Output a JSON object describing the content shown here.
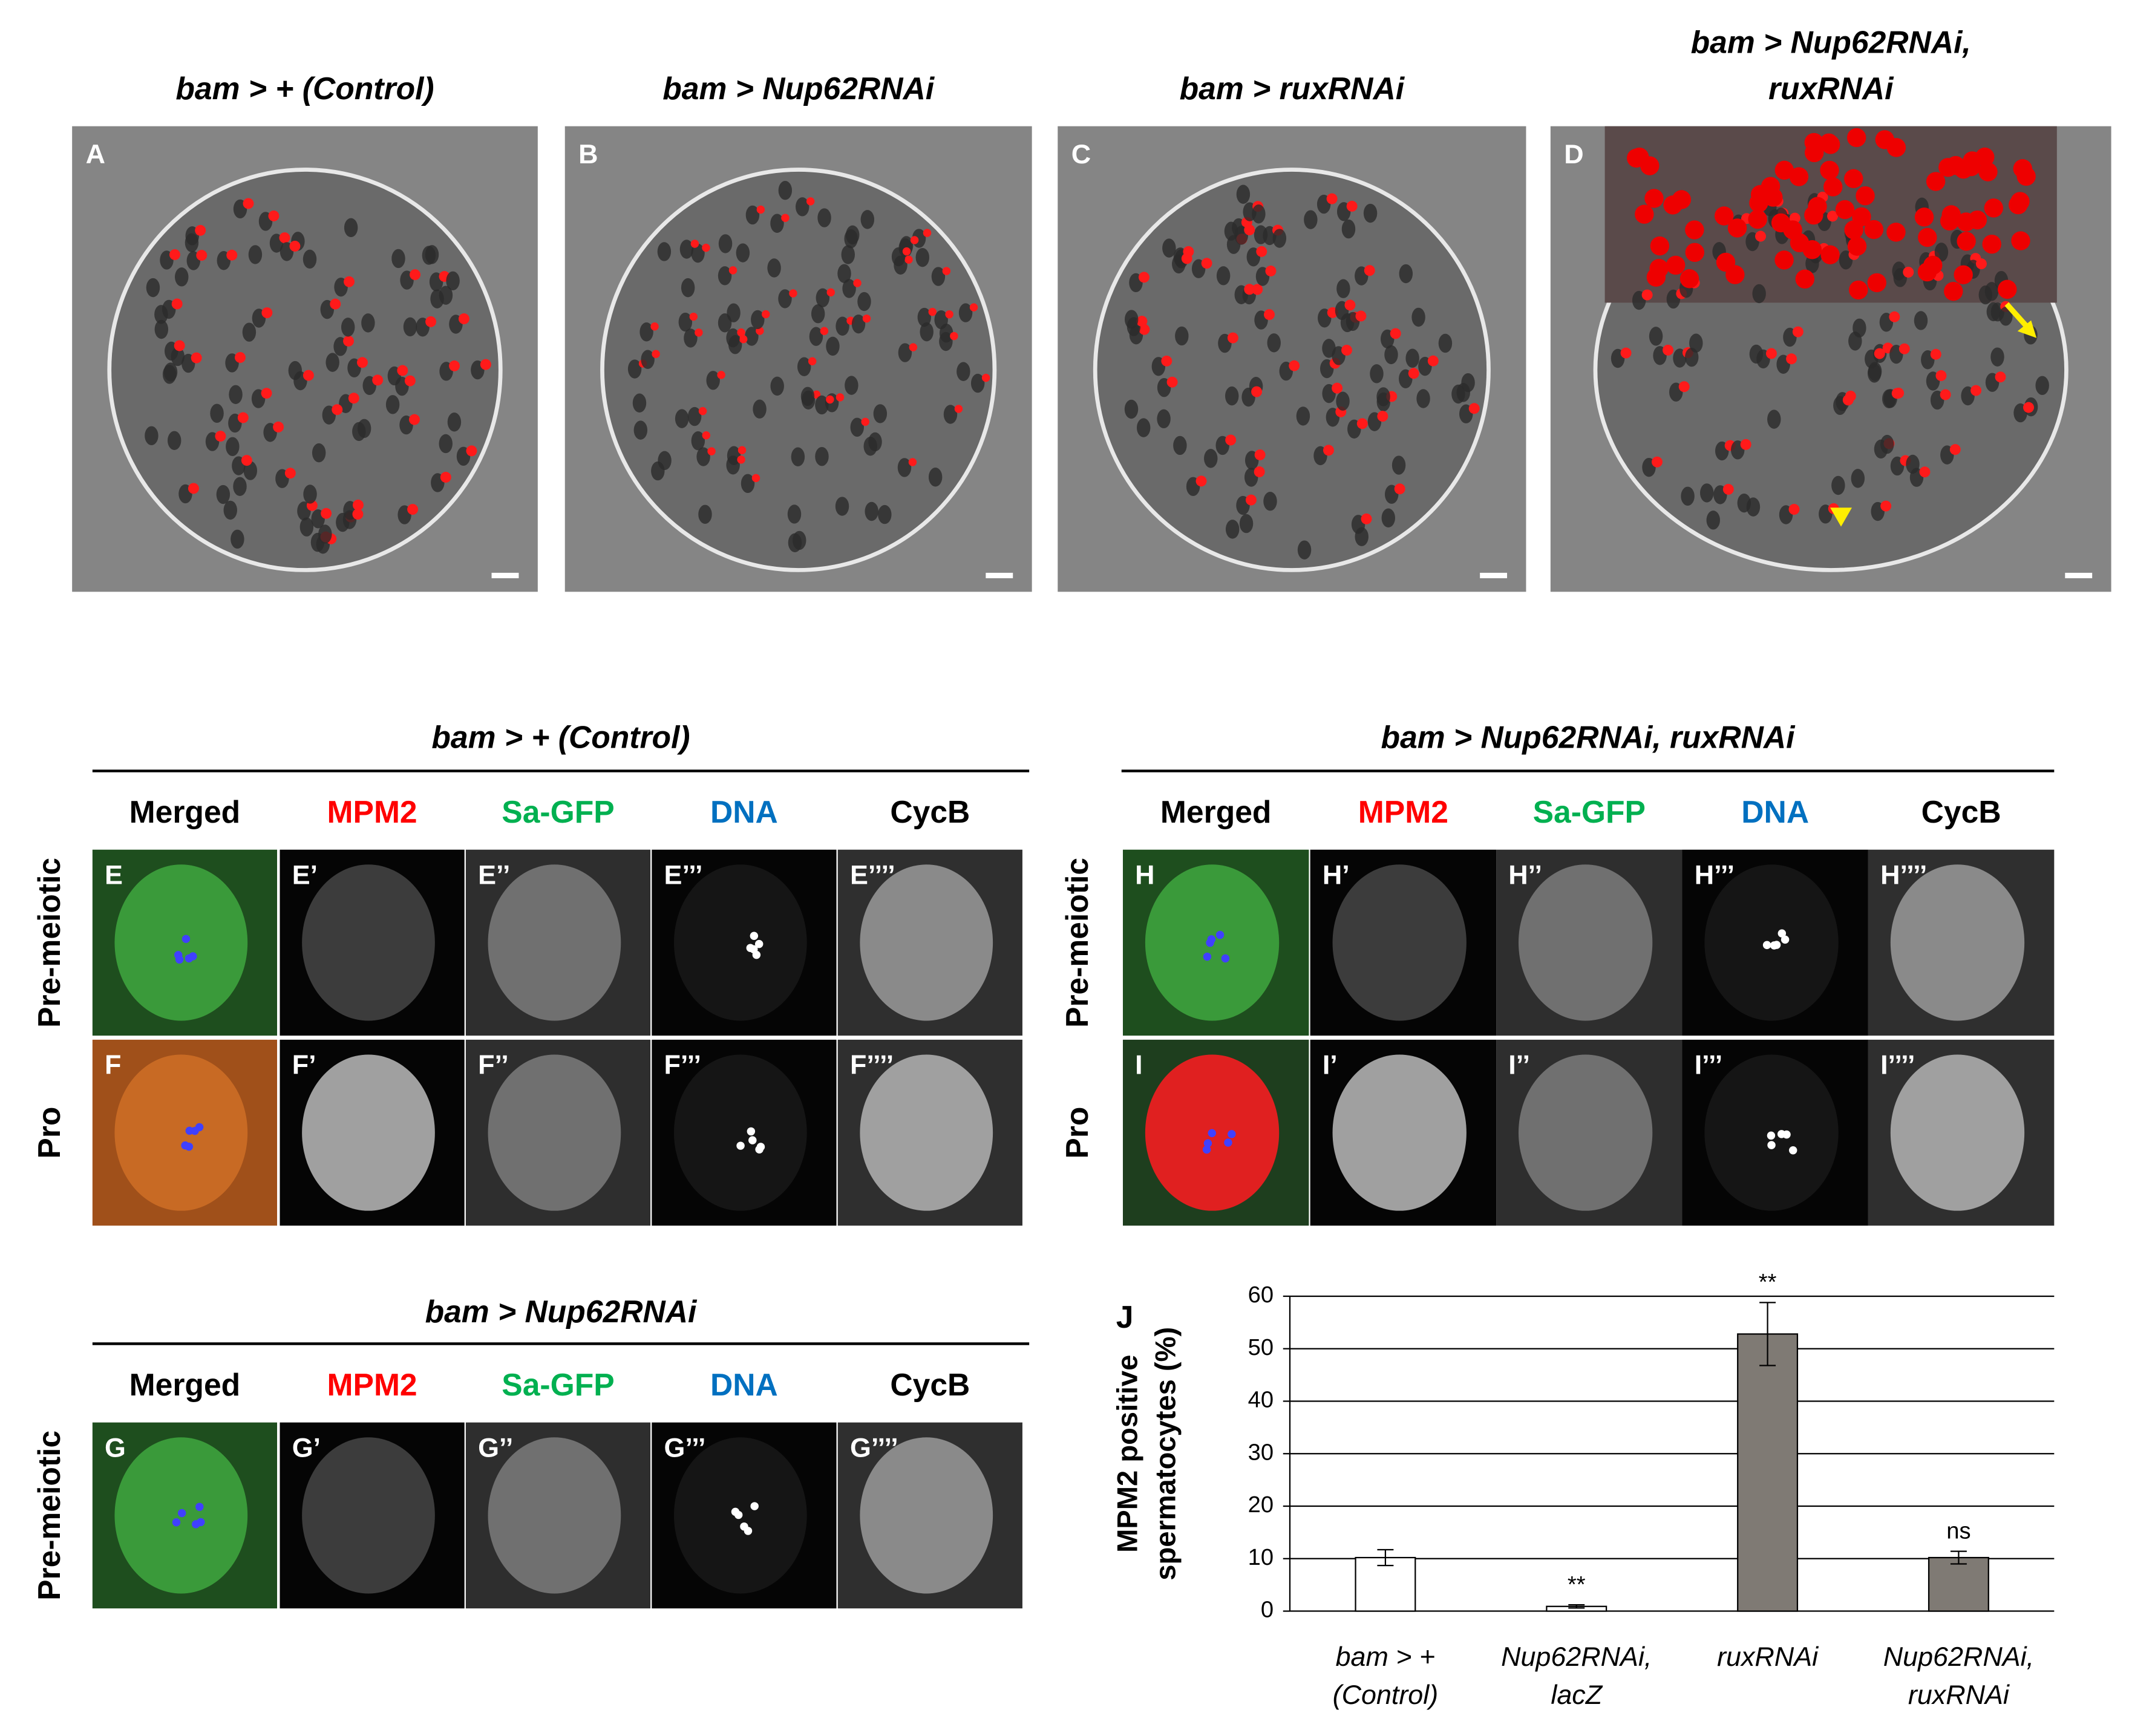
{
  "top_panels": [
    {
      "letter": "A",
      "title": [
        "bam > + (Control)"
      ]
    },
    {
      "letter": "B",
      "title": [
        "bam > Nup62RNAi"
      ]
    },
    {
      "letter": "C",
      "title": [
        "bam > ruxRNAi"
      ]
    },
    {
      "letter": "D",
      "title": [
        "bam > Nup62RNAi,",
        "ruxRNAi"
      ]
    }
  ],
  "groups": [
    {
      "title": "bam > + (Control)",
      "columns": [
        "Merged",
        "MPM2",
        "Sa-GFP",
        "DNA",
        "CycB"
      ],
      "rows": [
        {
          "label": "Pre-meiotic",
          "panels": [
            "E",
            "E’",
            "E’’",
            "E’’’",
            "E’’’’"
          ]
        },
        {
          "label": "Pro",
          "panels": [
            "F",
            "F’",
            "F’’",
            "F’’’",
            "F’’’’"
          ]
        }
      ]
    },
    {
      "title": "bam > Nup62RNAi, ruxRNAi",
      "columns": [
        "Merged",
        "MPM2",
        "Sa-GFP",
        "DNA",
        "CycB"
      ],
      "rows": [
        {
          "label": "Pre-meiotic",
          "panels": [
            "H",
            "H’",
            "H’’",
            "H’’’",
            "H’’’’"
          ]
        },
        {
          "label": "Pro",
          "panels": [
            "I",
            "I’",
            "I’’",
            "I’’’",
            "I’’’’"
          ]
        }
      ]
    },
    {
      "title": "bam > Nup62RNAi",
      "columns": [
        "Merged",
        "MPM2",
        "Sa-GFP",
        "DNA",
        "CycB"
      ],
      "rows": [
        {
          "label": "Pre-meiotic",
          "panels": [
            "G",
            "G’",
            "G’’",
            "G’’’",
            "G’’’’"
          ]
        }
      ]
    }
  ],
  "column_colors": [
    "#000000",
    "#ff0000",
    "#00b050",
    "#0070c0",
    "#000000"
  ],
  "chart_data": {
    "type": "bar",
    "label": "J",
    "ylabel": [
      "MPM2 positive",
      "spermatocytes (%)"
    ],
    "categories": [
      [
        "bam > +",
        "(Control)"
      ],
      [
        "Nup62RNAi,",
        "lacZ"
      ],
      [
        "ruxRNAi"
      ],
      [
        "Nup62RNAi,",
        "ruxRNAi"
      ]
    ],
    "values": [
      10.2,
      0.9,
      52.8,
      10.2
    ],
    "errors": [
      1.5,
      0.3,
      6,
      1.2
    ],
    "annotations": [
      null,
      "**",
      "**",
      "ns"
    ],
    "colors": [
      "#ffffff",
      "#ffffff",
      "#7f7a74",
      "#7f7a74"
    ],
    "ylim": [
      0,
      60
    ],
    "yticks": [
      0,
      10,
      20,
      30,
      40,
      50,
      60
    ],
    "grid": true
  }
}
